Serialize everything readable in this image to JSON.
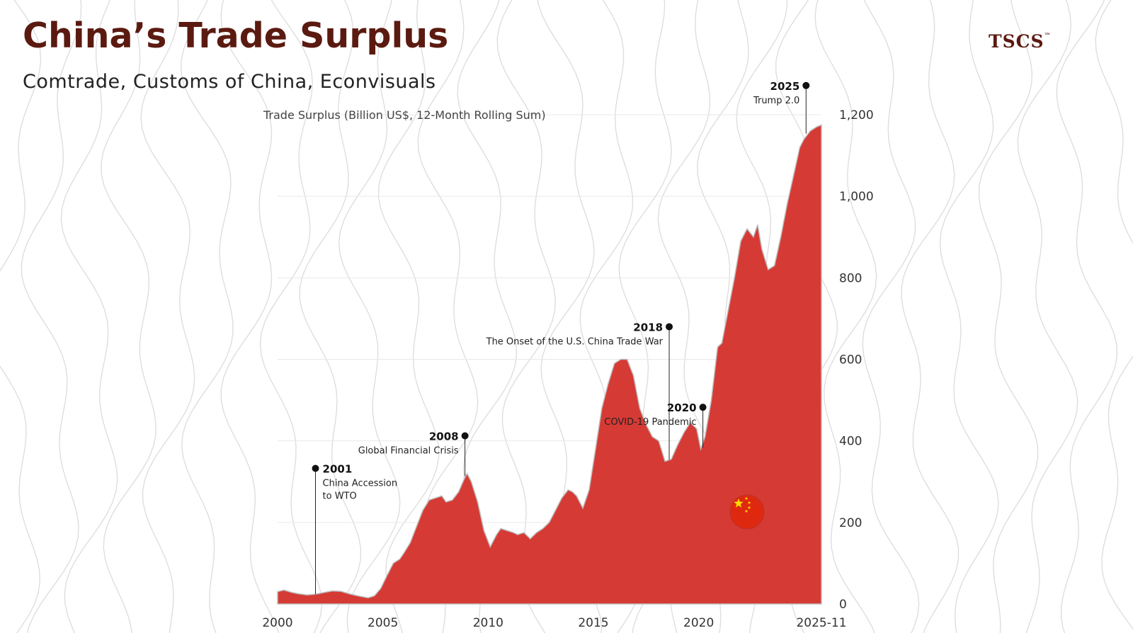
{
  "header": {
    "title": "China’s Trade Surplus",
    "subtitle": "Comtrade, Customs of China, Econvisuals",
    "brand": "TSCS",
    "brand_mark": "™"
  },
  "icons": {
    "flag": "china-flag-icon"
  },
  "colors": {
    "fill": "#d63a35",
    "title": "#5b1a10",
    "contour": "#dcdcdc",
    "gridline": "#e9e9e9",
    "flag_red": "#de2910",
    "flag_star": "#ffde00"
  },
  "chart_data": {
    "type": "area",
    "ylabel": "Trade Surplus (Billion US$, 12-Month Rolling Sum)",
    "xlim": [
      2000,
      2025.83
    ],
    "ylim": [
      0,
      1200
    ],
    "x_ticks": [
      {
        "value": 2000,
        "label": "2000"
      },
      {
        "value": 2005,
        "label": "2005"
      },
      {
        "value": 2010,
        "label": "2010"
      },
      {
        "value": 2015,
        "label": "2015"
      },
      {
        "value": 2020,
        "label": "2020"
      },
      {
        "value": 2025.83,
        "label": "2025-11"
      }
    ],
    "y_ticks": [
      {
        "value": 0,
        "label": "0"
      },
      {
        "value": 200,
        "label": "200"
      },
      {
        "value": 400,
        "label": "400"
      },
      {
        "value": 600,
        "label": "600"
      },
      {
        "value": 800,
        "label": "800"
      },
      {
        "value": 1000,
        "label": "1,000"
      },
      {
        "value": 1200,
        "label": "1,200"
      }
    ],
    "grid": true,
    "y_axis_position": "right",
    "series": [
      {
        "x": [
          2000.0,
          2000.3,
          2000.7,
          2001.0,
          2001.4,
          2001.8,
          2002.2,
          2002.6,
          2003.0,
          2003.4,
          2003.8,
          2004.0,
          2004.3,
          2004.6,
          2004.9,
          2005.2,
          2005.5,
          2005.8,
          2006.0,
          2006.3,
          2006.6,
          2006.9,
          2007.2,
          2007.5,
          2007.8,
          2008.0,
          2008.3,
          2008.6,
          2008.85,
          2009.0,
          2009.2,
          2009.5,
          2009.8,
          2010.1,
          2010.4,
          2010.6,
          2010.9,
          2011.2,
          2011.4,
          2011.7,
          2012.0,
          2012.3,
          2012.6,
          2012.9,
          2013.2,
          2013.5,
          2013.8,
          2014.0,
          2014.2,
          2014.5,
          2014.8,
          2015.1,
          2015.4,
          2015.7,
          2016.0,
          2016.3,
          2016.6,
          2016.9,
          2017.2,
          2017.5,
          2017.8,
          2018.1,
          2018.4,
          2018.7,
          2019.0,
          2019.3,
          2019.6,
          2019.9,
          2020.1,
          2020.3,
          2020.6,
          2020.9,
          2021.1,
          2021.4,
          2021.7,
          2022.0,
          2022.3,
          2022.6,
          2022.8,
          2023.0,
          2023.3,
          2023.6,
          2023.9,
          2024.2,
          2024.5,
          2024.8,
          2025.0,
          2025.3,
          2025.6,
          2025.83
        ],
        "y": [
          30,
          34,
          28,
          25,
          22,
          24,
          28,
          32,
          31,
          25,
          20,
          18,
          15,
          20,
          38,
          70,
          100,
          110,
          125,
          150,
          190,
          230,
          255,
          260,
          265,
          250,
          255,
          275,
          305,
          320,
          300,
          250,
          180,
          140,
          170,
          185,
          180,
          175,
          170,
          175,
          160,
          175,
          185,
          200,
          230,
          260,
          280,
          275,
          265,
          235,
          280,
          380,
          480,
          540,
          590,
          600,
          600,
          560,
          480,
          440,
          410,
          400,
          350,
          355,
          390,
          420,
          445,
          430,
          380,
          410,
          500,
          630,
          640,
          720,
          800,
          890,
          920,
          900,
          930,
          870,
          820,
          830,
          900,
          980,
          1050,
          1120,
          1140,
          1160,
          1170,
          1175
        ]
      }
    ],
    "annotations": [
      {
        "x": 2001.8,
        "y": 20,
        "year": "2001",
        "lines": [
          "China Accession",
          "to WTO"
        ],
        "side": "right"
      },
      {
        "x": 2008.9,
        "y": 310,
        "year": "2008",
        "lines": [
          "Global Financial Crisis"
        ],
        "side": "left"
      },
      {
        "x": 2018.6,
        "y": 350,
        "year": "2018",
        "lines": [
          "The Onset of the U.S. China Trade War"
        ],
        "side": "left"
      },
      {
        "x": 2020.2,
        "y": 380,
        "year": "2020",
        "lines": [
          "COVID-19 Pandemic"
        ],
        "side": "left"
      },
      {
        "x": 2025.1,
        "y": 1150,
        "year": "2025",
        "lines": [
          "Trump 2.0"
        ],
        "side": "left"
      }
    ]
  }
}
